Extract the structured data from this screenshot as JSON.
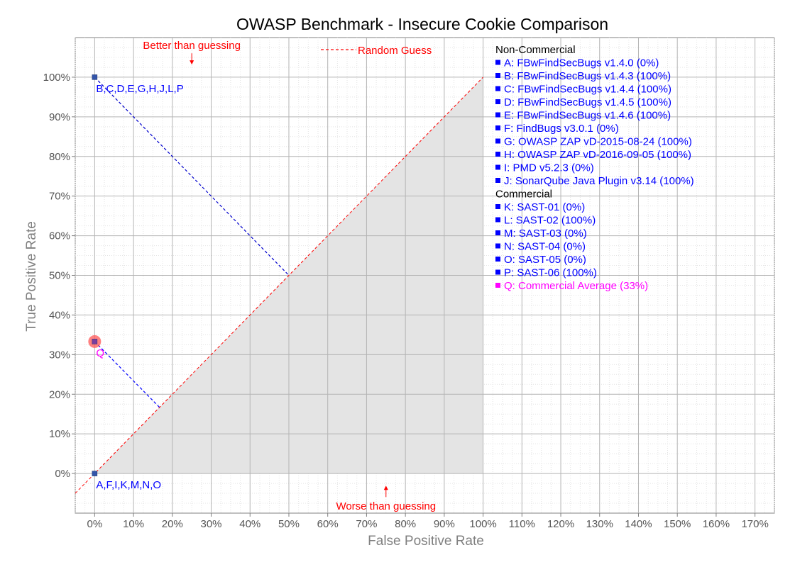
{
  "chart_data": {
    "type": "scatter",
    "title": "OWASP Benchmark - Insecure Cookie Comparison",
    "xlabel": "False Positive Rate",
    "ylabel": "True Positive Rate",
    "xlim": [
      -5,
      175
    ],
    "ylim": [
      -10,
      110
    ],
    "x_ticks": [
      0,
      10,
      20,
      30,
      40,
      50,
      60,
      70,
      80,
      90,
      100,
      110,
      120,
      130,
      140,
      150,
      160,
      170
    ],
    "y_ticks": [
      0,
      10,
      20,
      30,
      40,
      50,
      60,
      70,
      80,
      90,
      100
    ],
    "tick_suffix": "%",
    "grid": true,
    "random_guess": {
      "label": "Random Guess",
      "from": [
        -5,
        -5
      ],
      "to": [
        100,
        100
      ],
      "color": "#ff0000"
    },
    "annotations": [
      {
        "text": "Better than guessing",
        "x": 25,
        "y": 108,
        "arrow": "down",
        "color": "#ff0000"
      },
      {
        "text": "Worse than guessing",
        "x": 75,
        "y": -7,
        "arrow": "up",
        "color": "#ff0000"
      }
    ],
    "points": [
      {
        "label": "B,C,D,E,G,H,J,L,P",
        "x": 0,
        "y": 100,
        "color": "#3355aa"
      },
      {
        "label": "A,F,I,K,M,N,O",
        "x": 0,
        "y": 0,
        "color": "#3355aa"
      },
      {
        "label": "Q",
        "x": 0,
        "y": 33.3,
        "color": "#ff00ff",
        "highlight": "#ff5555"
      }
    ],
    "projections": [
      {
        "from": [
          0,
          100
        ],
        "to": [
          50,
          50
        ],
        "color": "#0000cc"
      },
      {
        "from": [
          0,
          33.3
        ],
        "to": [
          16.7,
          16.7
        ],
        "color": "#0000ff"
      }
    ],
    "legend": {
      "placement": "right",
      "groups": [
        {
          "heading": "Non-Commercial",
          "items": [
            {
              "text": "A: FBwFindSecBugs v1.4.0 (0%)",
              "color": "#0000ff"
            },
            {
              "text": "B: FBwFindSecBugs v1.4.3 (100%)",
              "color": "#0000ff"
            },
            {
              "text": "C: FBwFindSecBugs v1.4.4 (100%)",
              "color": "#0000ff"
            },
            {
              "text": "D: FBwFindSecBugs v1.4.5 (100%)",
              "color": "#0000ff"
            },
            {
              "text": "E: FBwFindSecBugs v1.4.6 (100%)",
              "color": "#0000ff"
            },
            {
              "text": "F: FindBugs v3.0.1 (0%)",
              "color": "#0000ff"
            },
            {
              "text": "G: OWASP ZAP vD-2015-08-24 (100%)",
              "color": "#0000ff"
            },
            {
              "text": "H: OWASP ZAP vD-2016-09-05 (100%)",
              "color": "#0000ff"
            },
            {
              "text": "I:  PMD v5.2.3 (0%)",
              "color": "#0000ff"
            },
            {
              "text": "J: SonarQube Java Plugin v3.14 (100%)",
              "color": "#0000ff"
            }
          ]
        },
        {
          "heading": "Commercial",
          "items": [
            {
              "text": "K: SAST-01 (0%)",
              "color": "#0000ff"
            },
            {
              "text": "L: SAST-02 (100%)",
              "color": "#0000ff"
            },
            {
              "text": "M: SAST-03 (0%)",
              "color": "#0000ff"
            },
            {
              "text": "N: SAST-04 (0%)",
              "color": "#0000ff"
            },
            {
              "text": "O: SAST-05 (0%)",
              "color": "#0000ff"
            },
            {
              "text": "P: SAST-06 (100%)",
              "color": "#0000ff"
            },
            {
              "text": "Q: Commercial Average (33%)",
              "color": "#ff00ff"
            }
          ]
        }
      ]
    }
  }
}
